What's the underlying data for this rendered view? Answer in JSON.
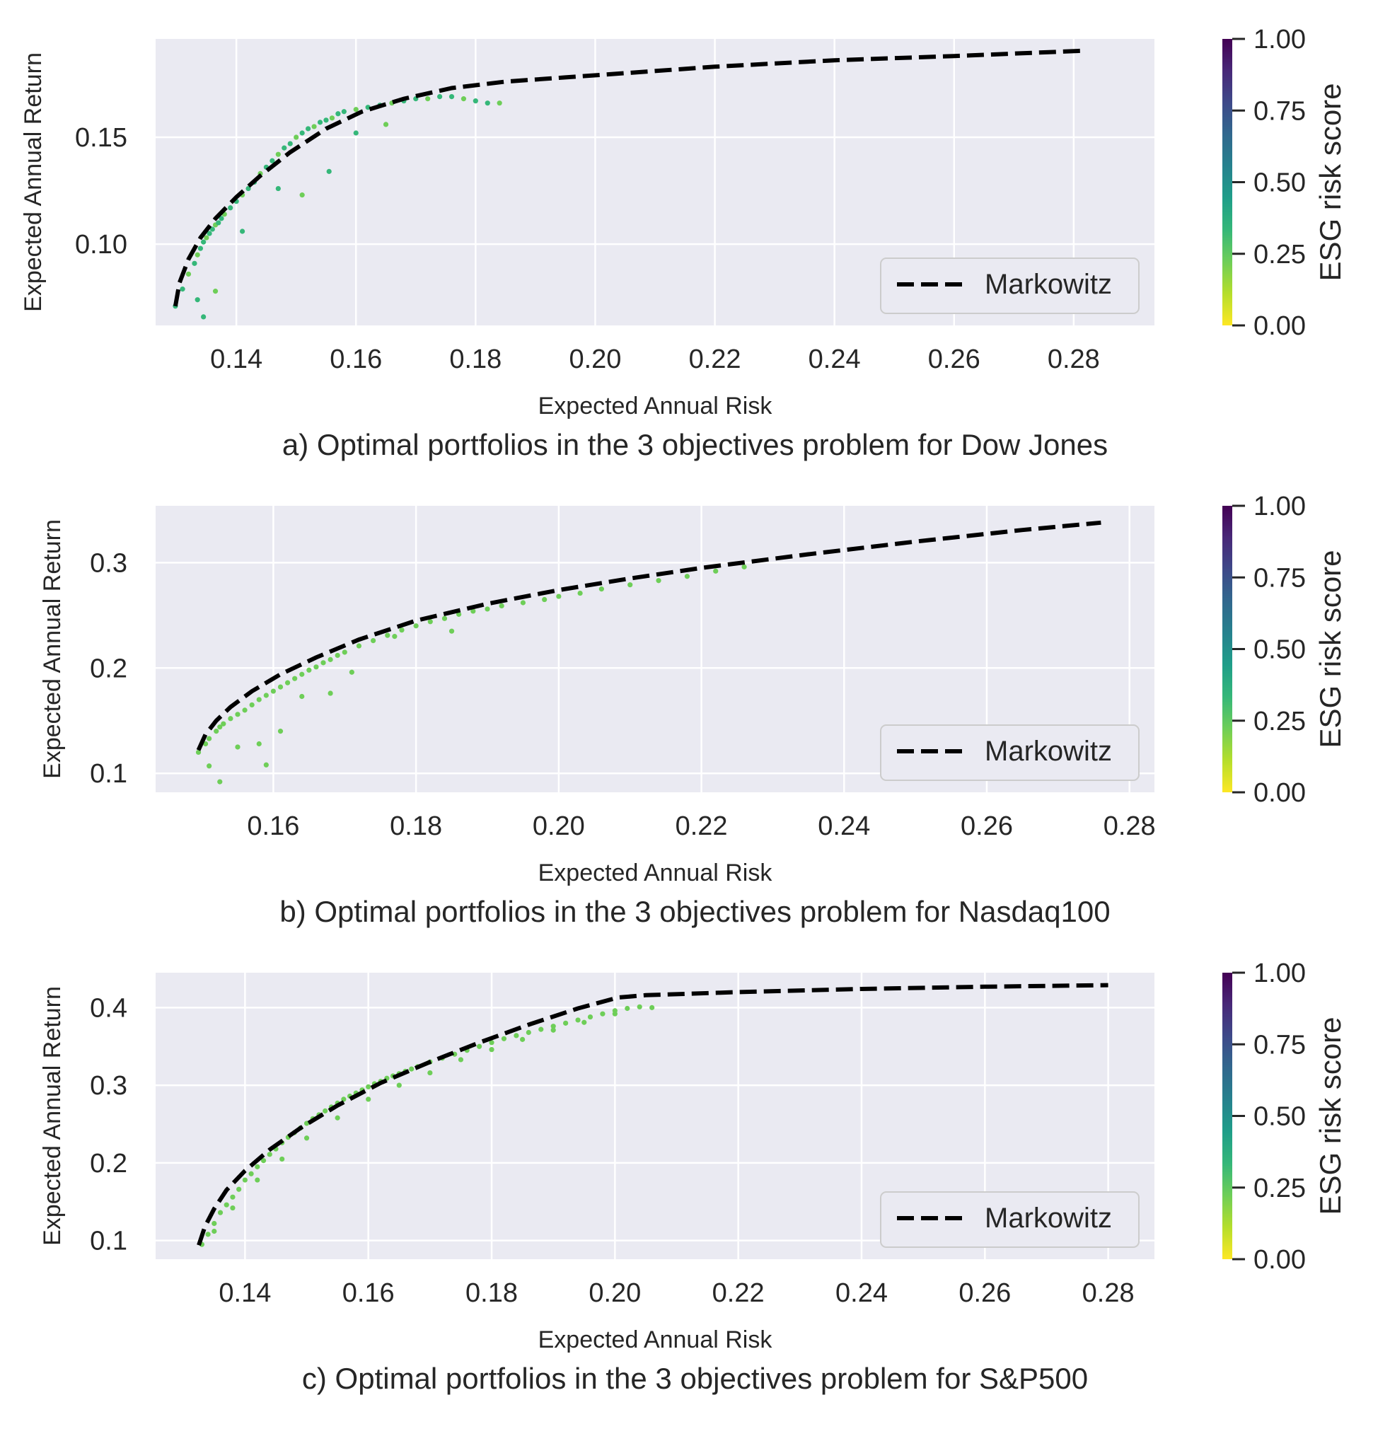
{
  "chart_data": [
    {
      "type": "scatter",
      "caption": "a) Optimal portfolios in the 3 objectives problem for Dow Jones",
      "xlabel": "Expected Annual Risk",
      "ylabel": "Expected Annual Return",
      "xlim": [
        0.1265,
        0.2935
      ],
      "ylim": [
        0.062,
        0.196
      ],
      "xticks": [
        0.14,
        0.16,
        0.18,
        0.2,
        0.22,
        0.24,
        0.26,
        0.28
      ],
      "xtick_labels": [
        "0.14",
        "0.16",
        "0.18",
        "0.20",
        "0.22",
        "0.24",
        "0.26",
        "0.28"
      ],
      "yticks": [
        0.1,
        0.15
      ],
      "ytick_labels": [
        "0.10",
        "0.15"
      ],
      "legend": {
        "label": "Markowitz",
        "position": "lower-right"
      },
      "colorbar": {
        "label": "ESG risk score",
        "ticks": [
          "0.00",
          "0.25",
          "0.50",
          "0.75",
          "1.00"
        ],
        "range": [
          0,
          1
        ]
      },
      "markowitz": {
        "x": [
          0.1298,
          0.1305,
          0.132,
          0.134,
          0.1365,
          0.14,
          0.144,
          0.149,
          0.155,
          0.161,
          0.168,
          0.176,
          0.185,
          0.195,
          0.205,
          0.22,
          0.24,
          0.26,
          0.282
        ],
        "y": [
          0.071,
          0.082,
          0.093,
          0.103,
          0.112,
          0.122,
          0.132,
          0.143,
          0.154,
          0.162,
          0.168,
          0.173,
          0.176,
          0.178,
          0.18,
          0.183,
          0.186,
          0.188,
          0.1905
        ]
      },
      "points": {
        "x": [
          0.1298,
          0.131,
          0.132,
          0.133,
          0.1335,
          0.134,
          0.1345,
          0.135,
          0.1355,
          0.136,
          0.1365,
          0.137,
          0.1375,
          0.138,
          0.139,
          0.14,
          0.141,
          0.142,
          0.143,
          0.144,
          0.145,
          0.146,
          0.147,
          0.148,
          0.149,
          0.15,
          0.151,
          0.152,
          0.153,
          0.154,
          0.155,
          0.156,
          0.157,
          0.158,
          0.16,
          0.162,
          0.164,
          0.166,
          0.168,
          0.17,
          0.172,
          0.174,
          0.176,
          0.178,
          0.18,
          0.182,
          0.184,
          0.1345,
          0.1335,
          0.1365,
          0.141,
          0.147,
          0.151,
          0.1555,
          0.16,
          0.165
        ],
        "y": [
          0.071,
          0.079,
          0.086,
          0.091,
          0.095,
          0.098,
          0.101,
          0.103,
          0.105,
          0.107,
          0.109,
          0.11,
          0.112,
          0.114,
          0.117,
          0.12,
          0.123,
          0.126,
          0.129,
          0.133,
          0.136,
          0.139,
          0.142,
          0.145,
          0.147,
          0.15,
          0.152,
          0.154,
          0.155,
          0.157,
          0.158,
          0.159,
          0.161,
          0.162,
          0.163,
          0.164,
          0.165,
          0.166,
          0.167,
          0.168,
          0.168,
          0.169,
          0.169,
          0.168,
          0.167,
          0.166,
          0.166,
          0.066,
          0.074,
          0.078,
          0.106,
          0.126,
          0.123,
          0.134,
          0.152,
          0.156
        ],
        "esg": [
          0.28,
          0.28,
          0.27,
          0.28,
          0.27,
          0.28,
          0.29,
          0.27,
          0.28,
          0.28,
          0.27,
          0.28,
          0.28,
          0.27,
          0.28,
          0.28,
          0.27,
          0.28,
          0.28,
          0.27,
          0.28,
          0.28,
          0.27,
          0.28,
          0.28,
          0.27,
          0.28,
          0.28,
          0.27,
          0.28,
          0.28,
          0.27,
          0.28,
          0.28,
          0.27,
          0.28,
          0.28,
          0.27,
          0.28,
          0.28,
          0.27,
          0.28,
          0.28,
          0.27,
          0.28,
          0.28,
          0.27,
          0.28,
          0.28,
          0.27,
          0.28,
          0.28,
          0.27,
          0.28,
          0.28,
          0.27
        ]
      }
    },
    {
      "type": "scatter",
      "caption": "b) Optimal portfolios in the 3 objectives problem for Nasdaq100",
      "xlabel": "Expected Annual Risk",
      "ylabel": "Expected Annual Return",
      "xlim": [
        0.1435,
        0.2835
      ],
      "ylim": [
        0.082,
        0.354
      ],
      "xticks": [
        0.16,
        0.18,
        0.2,
        0.22,
        0.24,
        0.26,
        0.28
      ],
      "xtick_labels": [
        "0.16",
        "0.18",
        "0.20",
        "0.22",
        "0.24",
        "0.26",
        "0.28"
      ],
      "yticks": [
        0.1,
        0.2,
        0.3
      ],
      "ytick_labels": [
        "0.1",
        "0.2",
        "0.3"
      ],
      "legend": {
        "label": "Markowitz",
        "position": "lower-right"
      },
      "colorbar": {
        "label": "ESG risk score",
        "ticks": [
          "0.00",
          "0.25",
          "0.50",
          "0.75",
          "1.00"
        ],
        "range": [
          0,
          1
        ]
      },
      "markowitz": {
        "x": [
          0.1495,
          0.1505,
          0.152,
          0.154,
          0.157,
          0.161,
          0.166,
          0.172,
          0.18,
          0.19,
          0.2,
          0.21,
          0.22,
          0.235,
          0.25,
          0.265,
          0.276
        ],
        "y": [
          0.122,
          0.137,
          0.15,
          0.163,
          0.178,
          0.194,
          0.21,
          0.227,
          0.245,
          0.261,
          0.274,
          0.285,
          0.295,
          0.308,
          0.32,
          0.331,
          0.338
        ]
      },
      "points": {
        "x": [
          0.1495,
          0.1505,
          0.151,
          0.152,
          0.1525,
          0.153,
          0.154,
          0.155,
          0.156,
          0.157,
          0.158,
          0.159,
          0.16,
          0.161,
          0.162,
          0.163,
          0.164,
          0.165,
          0.166,
          0.167,
          0.168,
          0.169,
          0.17,
          0.172,
          0.174,
          0.176,
          0.178,
          0.18,
          0.182,
          0.184,
          0.186,
          0.188,
          0.19,
          0.192,
          0.195,
          0.198,
          0.2,
          0.203,
          0.206,
          0.21,
          0.214,
          0.218,
          0.222,
          0.226,
          0.151,
          0.1525,
          0.155,
          0.158,
          0.159,
          0.161,
          0.164,
          0.168,
          0.171,
          0.177,
          0.185
        ],
        "y": [
          0.12,
          0.128,
          0.133,
          0.14,
          0.144,
          0.147,
          0.152,
          0.156,
          0.16,
          0.165,
          0.17,
          0.174,
          0.178,
          0.182,
          0.186,
          0.19,
          0.194,
          0.198,
          0.201,
          0.205,
          0.208,
          0.212,
          0.215,
          0.221,
          0.226,
          0.231,
          0.236,
          0.24,
          0.244,
          0.247,
          0.251,
          0.254,
          0.256,
          0.259,
          0.262,
          0.265,
          0.268,
          0.271,
          0.275,
          0.279,
          0.283,
          0.287,
          0.292,
          0.296,
          0.107,
          0.092,
          0.125,
          0.128,
          0.108,
          0.14,
          0.173,
          0.176,
          0.196,
          0.23,
          0.235
        ],
        "esg": [
          0.27,
          0.26,
          0.27,
          0.26,
          0.27,
          0.26,
          0.27,
          0.26,
          0.27,
          0.26,
          0.27,
          0.26,
          0.27,
          0.26,
          0.27,
          0.26,
          0.27,
          0.26,
          0.27,
          0.26,
          0.27,
          0.26,
          0.27,
          0.26,
          0.27,
          0.26,
          0.27,
          0.26,
          0.27,
          0.26,
          0.27,
          0.26,
          0.27,
          0.26,
          0.27,
          0.26,
          0.27,
          0.26,
          0.27,
          0.26,
          0.27,
          0.26,
          0.27,
          0.26,
          0.27,
          0.26,
          0.27,
          0.26,
          0.27,
          0.26,
          0.27,
          0.26,
          0.27,
          0.26,
          0.27
        ]
      }
    },
    {
      "type": "scatter",
      "caption": "c) Optimal portfolios in the 3 objectives problem for S&P500",
      "xlabel": "Expected Annual Risk",
      "ylabel": "Expected Annual Return",
      "xlim": [
        0.1255,
        0.2875
      ],
      "ylim": [
        0.076,
        0.445
      ],
      "xticks": [
        0.14,
        0.16,
        0.18,
        0.2,
        0.22,
        0.24,
        0.26,
        0.28
      ],
      "xtick_labels": [
        "0.14",
        "0.16",
        "0.18",
        "0.20",
        "0.22",
        "0.24",
        "0.26",
        "0.28"
      ],
      "yticks": [
        0.1,
        0.2,
        0.3,
        0.4
      ],
      "ytick_labels": [
        "0.1",
        "0.2",
        "0.3",
        "0.4"
      ],
      "legend": {
        "label": "Markowitz",
        "position": "lower-right"
      },
      "colorbar": {
        "label": "ESG risk score",
        "ticks": [
          "0.00",
          "0.25",
          "0.50",
          "0.75",
          "1.00"
        ],
        "range": [
          0,
          1
        ]
      },
      "markowitz": {
        "x": [
          0.1325,
          0.1335,
          0.135,
          0.137,
          0.14,
          0.144,
          0.149,
          0.155,
          0.162,
          0.17,
          0.178,
          0.186,
          0.194,
          0.2005,
          0.205,
          0.22,
          0.24,
          0.26,
          0.28
        ],
        "y": [
          0.094,
          0.118,
          0.141,
          0.165,
          0.19,
          0.217,
          0.245,
          0.274,
          0.303,
          0.33,
          0.355,
          0.378,
          0.399,
          0.413,
          0.416,
          0.42,
          0.424,
          0.427,
          0.429
        ]
      },
      "points": {
        "x": [
          0.133,
          0.134,
          0.135,
          0.136,
          0.137,
          0.138,
          0.139,
          0.14,
          0.141,
          0.142,
          0.143,
          0.144,
          0.145,
          0.146,
          0.147,
          0.148,
          0.149,
          0.15,
          0.151,
          0.152,
          0.153,
          0.154,
          0.155,
          0.156,
          0.157,
          0.158,
          0.159,
          0.16,
          0.161,
          0.162,
          0.163,
          0.164,
          0.165,
          0.166,
          0.167,
          0.168,
          0.17,
          0.172,
          0.174,
          0.176,
          0.178,
          0.18,
          0.182,
          0.184,
          0.186,
          0.188,
          0.19,
          0.192,
          0.194,
          0.196,
          0.198,
          0.2,
          0.202,
          0.204,
          0.206,
          0.135,
          0.138,
          0.142,
          0.146,
          0.15,
          0.155,
          0.16,
          0.165,
          0.17,
          0.175,
          0.18,
          0.185,
          0.19,
          0.195,
          0.2
        ],
        "y": [
          0.095,
          0.108,
          0.122,
          0.136,
          0.146,
          0.156,
          0.166,
          0.178,
          0.186,
          0.195,
          0.203,
          0.211,
          0.218,
          0.226,
          0.233,
          0.239,
          0.245,
          0.251,
          0.257,
          0.262,
          0.267,
          0.272,
          0.277,
          0.282,
          0.286,
          0.29,
          0.294,
          0.298,
          0.302,
          0.305,
          0.309,
          0.312,
          0.315,
          0.318,
          0.321,
          0.324,
          0.33,
          0.335,
          0.34,
          0.345,
          0.35,
          0.355,
          0.36,
          0.364,
          0.368,
          0.372,
          0.376,
          0.38,
          0.384,
          0.388,
          0.392,
          0.396,
          0.399,
          0.401,
          0.4,
          0.112,
          0.142,
          0.178,
          0.205,
          0.232,
          0.258,
          0.282,
          0.3,
          0.316,
          0.333,
          0.346,
          0.359,
          0.371,
          0.381,
          0.392
        ],
        "esg": [
          0.22,
          0.21,
          0.22,
          0.21,
          0.22,
          0.21,
          0.22,
          0.21,
          0.22,
          0.21,
          0.22,
          0.21,
          0.22,
          0.21,
          0.22,
          0.21,
          0.22,
          0.21,
          0.22,
          0.21,
          0.22,
          0.21,
          0.22,
          0.21,
          0.22,
          0.21,
          0.22,
          0.21,
          0.22,
          0.21,
          0.22,
          0.21,
          0.22,
          0.21,
          0.22,
          0.21,
          0.22,
          0.21,
          0.22,
          0.21,
          0.22,
          0.21,
          0.22,
          0.21,
          0.22,
          0.21,
          0.22,
          0.21,
          0.22,
          0.21,
          0.22,
          0.21,
          0.22,
          0.21,
          0.22,
          0.21,
          0.22,
          0.21,
          0.22,
          0.21,
          0.22,
          0.21,
          0.22,
          0.21,
          0.22,
          0.21,
          0.22,
          0.21,
          0.22,
          0.21
        ]
      }
    }
  ],
  "colors": {
    "plot_bg": "#eaeaf2",
    "grid": "#ffffff",
    "markowitz_line": "#000000",
    "text": "#262626",
    "legend_bg": "#eaeaf2",
    "legend_border": "#cccccc",
    "viridis": [
      "#fde725",
      "#b5de2b",
      "#6ece58",
      "#35b779",
      "#1f9e89",
      "#26828e",
      "#31688e",
      "#3e4989",
      "#482878",
      "#440154"
    ]
  }
}
